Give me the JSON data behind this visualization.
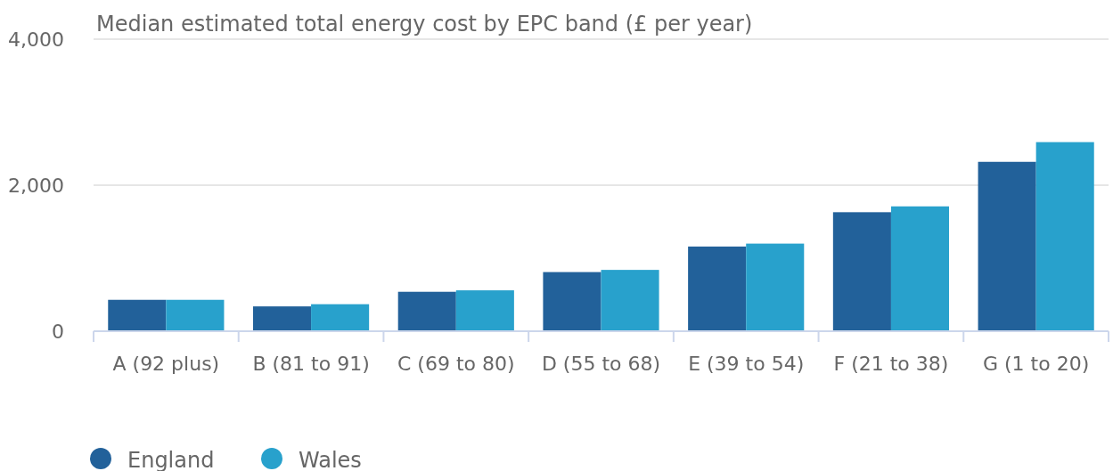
{
  "chart_data": {
    "type": "bar",
    "title": "Median estimated total energy cost by EPC band (£ per year)",
    "categories": [
      "A (92 plus)",
      "B (81 to 91)",
      "C (69 to 80)",
      "D (55 to 68)",
      "E (39 to 54)",
      "F (21 to 38)",
      "G (1 to 20)"
    ],
    "series": [
      {
        "name": "England",
        "color": "#22619a",
        "values": [
          430,
          340,
          540,
          810,
          1160,
          1630,
          2320
        ]
      },
      {
        "name": "Wales",
        "color": "#28a1cc",
        "values": [
          430,
          370,
          560,
          840,
          1200,
          1710,
          2590
        ]
      }
    ],
    "ylim": [
      0,
      4000
    ],
    "yticks": [
      {
        "value": 0,
        "label": "0"
      },
      {
        "value": 2000,
        "label": "2,000"
      },
      {
        "value": 4000,
        "label": "4,000"
      }
    ],
    "grid": "y",
    "legend": "bottom"
  }
}
